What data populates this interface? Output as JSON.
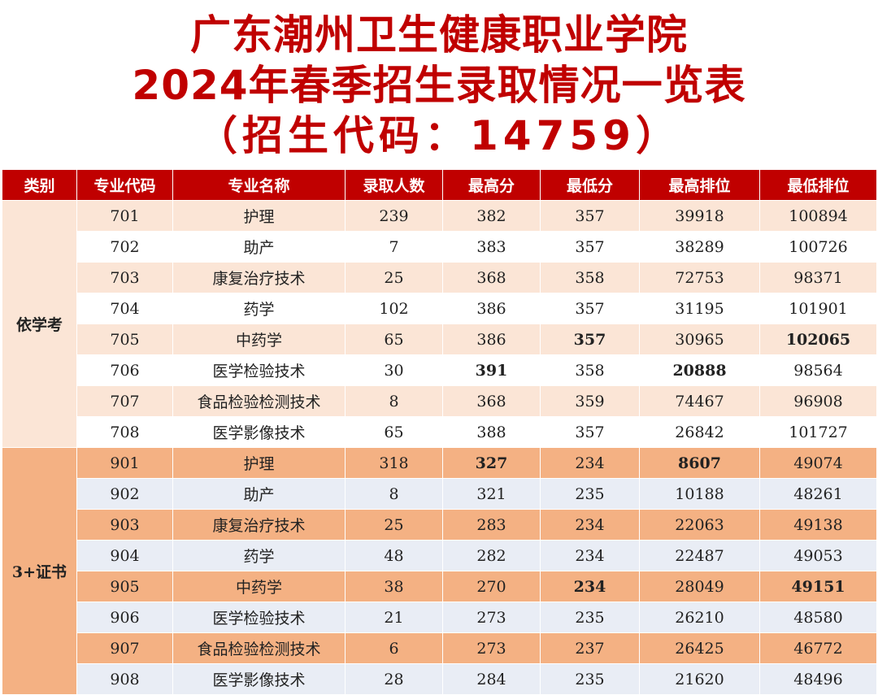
{
  "title": {
    "line1": "广东潮州卫生健康职业学院",
    "line2": "2024年春季招生录取情况一览表",
    "line3": "（招生代码：14759）"
  },
  "colors": {
    "header_bg": "#c00000",
    "title": "#c00000",
    "highlight": "#ff0000",
    "band1": "#fbe5d6",
    "band2": "#f4b183",
    "band2_alt": "#e9edf5"
  },
  "headers": [
    "类别",
    "专业代码",
    "专业名称",
    "录取人数",
    "最高分",
    "最低分",
    "最高排位",
    "最低排位"
  ],
  "groups": [
    {
      "category": "依学考",
      "rows": [
        {
          "code": "701",
          "name": "护理",
          "count": "239",
          "max": "382",
          "min": "357",
          "top_rank": "39918",
          "low_rank": "100894",
          "hl": []
        },
        {
          "code": "702",
          "name": "助产",
          "count": "7",
          "max": "383",
          "min": "357",
          "top_rank": "38289",
          "low_rank": "100726",
          "hl": []
        },
        {
          "code": "703",
          "name": "康复治疗技术",
          "count": "25",
          "max": "368",
          "min": "358",
          "top_rank": "72753",
          "low_rank": "98371",
          "hl": []
        },
        {
          "code": "704",
          "name": "药学",
          "count": "102",
          "max": "386",
          "min": "357",
          "top_rank": "31195",
          "low_rank": "101901",
          "hl": []
        },
        {
          "code": "705",
          "name": "中药学",
          "count": "65",
          "max": "386",
          "min": "357",
          "top_rank": "30965",
          "low_rank": "102065",
          "hl": [
            "min",
            "low_rank"
          ]
        },
        {
          "code": "706",
          "name": "医学检验技术",
          "count": "30",
          "max": "391",
          "min": "358",
          "top_rank": "20888",
          "low_rank": "98564",
          "hl": [
            "max",
            "top_rank"
          ]
        },
        {
          "code": "707",
          "name": "食品检验检测技术",
          "count": "8",
          "max": "368",
          "min": "359",
          "top_rank": "74467",
          "low_rank": "96908",
          "hl": []
        },
        {
          "code": "708",
          "name": "医学影像技术",
          "count": "65",
          "max": "388",
          "min": "357",
          "top_rank": "26842",
          "low_rank": "101727",
          "hl": []
        }
      ]
    },
    {
      "category": "3+证书",
      "rows": [
        {
          "code": "901",
          "name": "护理",
          "count": "318",
          "max": "327",
          "min": "234",
          "top_rank": "8607",
          "low_rank": "49074",
          "hl": [
            "max",
            "top_rank"
          ]
        },
        {
          "code": "902",
          "name": "助产",
          "count": "8",
          "max": "321",
          "min": "235",
          "top_rank": "10188",
          "low_rank": "48261",
          "hl": []
        },
        {
          "code": "903",
          "name": "康复治疗技术",
          "count": "25",
          "max": "283",
          "min": "234",
          "top_rank": "22063",
          "low_rank": "49138",
          "hl": []
        },
        {
          "code": "904",
          "name": "药学",
          "count": "48",
          "max": "282",
          "min": "234",
          "top_rank": "22487",
          "low_rank": "49053",
          "hl": []
        },
        {
          "code": "905",
          "name": "中药学",
          "count": "38",
          "max": "270",
          "min": "234",
          "top_rank": "28049",
          "low_rank": "49151",
          "hl": [
            "min",
            "low_rank"
          ]
        },
        {
          "code": "906",
          "name": "医学检验技术",
          "count": "21",
          "max": "273",
          "min": "235",
          "top_rank": "26210",
          "low_rank": "48580",
          "hl": []
        },
        {
          "code": "907",
          "name": "食品检验检测技术",
          "count": "6",
          "max": "273",
          "min": "237",
          "top_rank": "26425",
          "low_rank": "46772",
          "hl": []
        },
        {
          "code": "908",
          "name": "医学影像技术",
          "count": "28",
          "max": "284",
          "min": "235",
          "top_rank": "21620",
          "low_rank": "48496",
          "hl": []
        }
      ]
    }
  ]
}
